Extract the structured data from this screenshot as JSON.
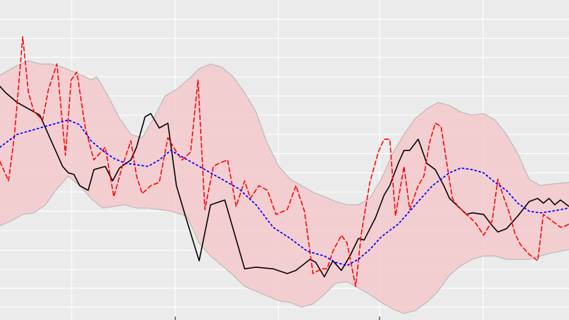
{
  "chart_data": {
    "type": "line",
    "title": "",
    "xlabel": "",
    "ylabel": "",
    "xlim": [
      0,
      100
    ],
    "ylim": [
      0,
      100
    ],
    "grid": true,
    "legend": "none",
    "colors": {
      "panel": "#ebebeb",
      "grid": "#ffffff",
      "band_fill": "#f4c9cc",
      "band_edge": "#b8b8b8",
      "actual": "#000000",
      "forecast": "#ff0000",
      "trend": "#0000ff"
    },
    "x_ticks": [
      12.6,
      30.8,
      48.9,
      66.7,
      84.9
    ],
    "y_ticks": [
      4.0,
      9.9,
      15.8,
      21.8,
      27.9,
      34.0,
      40.0,
      46.0,
      52.0,
      58.0,
      64.0,
      70.0,
      76.0,
      82.1,
      88.0,
      94.0
    ],
    "band_upper": [
      [
        0,
        76.5
      ],
      [
        3,
        79.5
      ],
      [
        5,
        81
      ],
      [
        7,
        80
      ],
      [
        9,
        80
      ],
      [
        11,
        79
      ],
      [
        13,
        77.5
      ],
      [
        15,
        76
      ],
      [
        16,
        75
      ],
      [
        17,
        76
      ],
      [
        19,
        70
      ],
      [
        21,
        63
      ],
      [
        23,
        58
      ],
      [
        25,
        57
      ],
      [
        27,
        63
      ],
      [
        29,
        70
      ],
      [
        31,
        72
      ],
      [
        33,
        75
      ],
      [
        35,
        78.5
      ],
      [
        37,
        80
      ],
      [
        39,
        79
      ],
      [
        41,
        76
      ],
      [
        43,
        71
      ],
      [
        45,
        65
      ],
      [
        47,
        55
      ],
      [
        49,
        48
      ],
      [
        51,
        44
      ],
      [
        53,
        42
      ],
      [
        55,
        40
      ],
      [
        57,
        38.5
      ],
      [
        59,
        37
      ],
      [
        61,
        36
      ],
      [
        63,
        36
      ],
      [
        65,
        38
      ],
      [
        67,
        44
      ],
      [
        69,
        52
      ],
      [
        71,
        58
      ],
      [
        73,
        63
      ],
      [
        75,
        66
      ],
      [
        77,
        68
      ],
      [
        79,
        67
      ],
      [
        81,
        65
      ],
      [
        83,
        64
      ],
      [
        85,
        64.5
      ],
      [
        87,
        62.5
      ],
      [
        89,
        58
      ],
      [
        91,
        52
      ],
      [
        93,
        44
      ],
      [
        95,
        42
      ],
      [
        97,
        42.5
      ],
      [
        100,
        43
      ]
    ],
    "band_lower": [
      [
        0,
        29.5
      ],
      [
        2,
        31
      ],
      [
        4,
        33
      ],
      [
        6,
        33.5
      ],
      [
        8,
        36
      ],
      [
        10,
        41
      ],
      [
        12,
        45
      ],
      [
        14,
        42
      ],
      [
        16,
        38
      ],
      [
        18,
        35
      ],
      [
        20,
        35.5
      ],
      [
        22,
        36
      ],
      [
        24,
        35
      ],
      [
        26,
        35
      ],
      [
        28,
        34.5
      ],
      [
        30,
        34
      ],
      [
        32,
        33
      ],
      [
        33,
        32
      ],
      [
        35,
        24
      ],
      [
        37,
        20
      ],
      [
        39,
        17
      ],
      [
        41,
        14
      ],
      [
        43,
        10.5
      ],
      [
        45,
        9
      ],
      [
        47,
        7.5
      ],
      [
        49,
        6
      ],
      [
        51,
        5.5
      ],
      [
        53,
        4
      ],
      [
        55,
        5
      ],
      [
        57,
        8
      ],
      [
        59,
        11.5
      ],
      [
        61,
        12
      ],
      [
        63,
        10
      ],
      [
        65,
        8
      ],
      [
        67,
        5.5
      ],
      [
        69,
        3.5
      ],
      [
        71,
        2
      ],
      [
        73,
        3
      ],
      [
        75,
        5.5
      ],
      [
        77,
        9
      ],
      [
        79,
        14
      ],
      [
        81,
        17
      ],
      [
        83,
        19
      ],
      [
        85,
        20
      ],
      [
        87,
        20
      ],
      [
        89,
        19
      ],
      [
        91,
        19
      ],
      [
        93,
        19
      ],
      [
        95,
        20
      ],
      [
        97,
        21
      ],
      [
        100,
        22
      ]
    ],
    "series": [
      {
        "values": [
          [
            0,
            73
          ],
          [
            1,
            71
          ],
          [
            3,
            68
          ],
          [
            5,
            66
          ],
          [
            7,
            64
          ],
          [
            9,
            56
          ],
          [
            11,
            48
          ],
          [
            12,
            46
          ],
          [
            13,
            45.5
          ],
          [
            14,
            42
          ],
          [
            15.5,
            40.5
          ],
          [
            16.5,
            47
          ],
          [
            18.5,
            48
          ],
          [
            19.8,
            43.5
          ],
          [
            21,
            47.5
          ],
          [
            23,
            50
          ],
          [
            24,
            54
          ],
          [
            25.5,
            63.5
          ],
          [
            26.5,
            64.5
          ],
          [
            28,
            60
          ],
          [
            29.5,
            61.5
          ],
          [
            31,
            42
          ],
          [
            32.5,
            33
          ],
          [
            35,
            18.5
          ],
          [
            37,
            36
          ],
          [
            39.5,
            37.5
          ],
          [
            43,
            16
          ],
          [
            45,
            16.5
          ],
          [
            48,
            16
          ],
          [
            50.5,
            14.5
          ],
          [
            52,
            15.5
          ],
          [
            54.5,
            19
          ],
          [
            55.5,
            18
          ],
          [
            57,
            13.5
          ],
          [
            58.5,
            18.5
          ],
          [
            60,
            15.5
          ],
          [
            61.5,
            20
          ],
          [
            63,
            25.5
          ],
          [
            64,
            25
          ],
          [
            66,
            32
          ],
          [
            67.5,
            39
          ],
          [
            68.5,
            42
          ],
          [
            70,
            49
          ],
          [
            71,
            53
          ],
          [
            72,
            53
          ],
          [
            73.5,
            56.5
          ],
          [
            75,
            49
          ],
          [
            76.5,
            47
          ],
          [
            78,
            42
          ],
          [
            79,
            38
          ],
          [
            82,
            33
          ],
          [
            83,
            33.5
          ],
          [
            85,
            33
          ],
          [
            86.5,
            29.5
          ],
          [
            87.5,
            27.5
          ],
          [
            89,
            28.5
          ],
          [
            91,
            32.5
          ],
          [
            93,
            37
          ],
          [
            94.5,
            38
          ],
          [
            95.5,
            36.5
          ],
          [
            96.5,
            38
          ],
          [
            97.5,
            36
          ],
          [
            98.5,
            37.5
          ],
          [
            100,
            35.5
          ]
        ]
      },
      {
        "values": [
          [
            0,
            49.5
          ],
          [
            1.5,
            43.5
          ],
          [
            2.5,
            57
          ],
          [
            4,
            88.5
          ],
          [
            5,
            71
          ],
          [
            6,
            65
          ],
          [
            7.5,
            62.5
          ],
          [
            8.5,
            72
          ],
          [
            10,
            80
          ],
          [
            11.5,
            51.5
          ],
          [
            12.5,
            75
          ],
          [
            13.5,
            77.5
          ],
          [
            15,
            60
          ],
          [
            16.5,
            50
          ],
          [
            18.5,
            54
          ],
          [
            20,
            38.5
          ],
          [
            21.5,
            48
          ],
          [
            23,
            56
          ],
          [
            24,
            45
          ],
          [
            25,
            39.5
          ],
          [
            26.5,
            42
          ],
          [
            28,
            43
          ],
          [
            29.5,
            57
          ],
          [
            31,
            52.5
          ],
          [
            32,
            50
          ],
          [
            33.5,
            52.5
          ],
          [
            34.8,
            75
          ],
          [
            36,
            34.5
          ],
          [
            37.5,
            48
          ],
          [
            38.5,
            49
          ],
          [
            40,
            50
          ],
          [
            41.5,
            35.5
          ],
          [
            43,
            43.5
          ],
          [
            44,
            38
          ],
          [
            45.5,
            42
          ],
          [
            47,
            40.5
          ],
          [
            48.5,
            33
          ],
          [
            50.5,
            34.5
          ],
          [
            52,
            42
          ],
          [
            53.5,
            34
          ],
          [
            55,
            14.5
          ],
          [
            56.5,
            16
          ],
          [
            57.5,
            16
          ],
          [
            58.5,
            21.5
          ],
          [
            60,
            26.5
          ],
          [
            61,
            24
          ],
          [
            62.5,
            10.5
          ],
          [
            63.5,
            27
          ],
          [
            65,
            43
          ],
          [
            66.5,
            52.5
          ],
          [
            67.5,
            56.5
          ],
          [
            68.5,
            56.5
          ],
          [
            69.5,
            32.5
          ],
          [
            71,
            48
          ],
          [
            72,
            34.5
          ],
          [
            73.5,
            42
          ],
          [
            74.5,
            45
          ],
          [
            75.5,
            55.5
          ],
          [
            76.5,
            61.5
          ],
          [
            77.5,
            60.5
          ],
          [
            79.5,
            38
          ],
          [
            80.5,
            35.5
          ],
          [
            82,
            33
          ],
          [
            83.5,
            30.5
          ],
          [
            85,
            26.5
          ],
          [
            86.5,
            31
          ],
          [
            87.5,
            44
          ],
          [
            88.5,
            38.5
          ],
          [
            89.5,
            33.5
          ],
          [
            90.5,
            27
          ],
          [
            91.5,
            23.5
          ],
          [
            93,
            20.5
          ],
          [
            94.5,
            18.5
          ],
          [
            95.5,
            33
          ],
          [
            97,
            31
          ],
          [
            98.5,
            29
          ],
          [
            99.5,
            29.5
          ],
          [
            100,
            30
          ]
        ]
      },
      {
        "values": [
          [
            0,
            54
          ],
          [
            3,
            58
          ],
          [
            6,
            59.5
          ],
          [
            9,
            61
          ],
          [
            12,
            62.5
          ],
          [
            14,
            61
          ],
          [
            16,
            56
          ],
          [
            18,
            53
          ],
          [
            20,
            50.5
          ],
          [
            22,
            49
          ],
          [
            24,
            48.5
          ],
          [
            26,
            48
          ],
          [
            28,
            50
          ],
          [
            30,
            53
          ],
          [
            33,
            50
          ],
          [
            36,
            47
          ],
          [
            39,
            44
          ],
          [
            42,
            41
          ],
          [
            45,
            36
          ],
          [
            48,
            29
          ],
          [
            51,
            25.5
          ],
          [
            54,
            21.5
          ],
          [
            57,
            20
          ],
          [
            59,
            18
          ],
          [
            61,
            17
          ],
          [
            63,
            19
          ],
          [
            65,
            22
          ],
          [
            67,
            26
          ],
          [
            70,
            30
          ],
          [
            73,
            36
          ],
          [
            76,
            42
          ],
          [
            79,
            46
          ],
          [
            81,
            47.5
          ],
          [
            83,
            47
          ],
          [
            85,
            46
          ],
          [
            87,
            43
          ],
          [
            89,
            40.5
          ],
          [
            91,
            36.5
          ],
          [
            93,
            34
          ],
          [
            95,
            33.5
          ],
          [
            97,
            34
          ],
          [
            100,
            35
          ]
        ]
      }
    ]
  }
}
